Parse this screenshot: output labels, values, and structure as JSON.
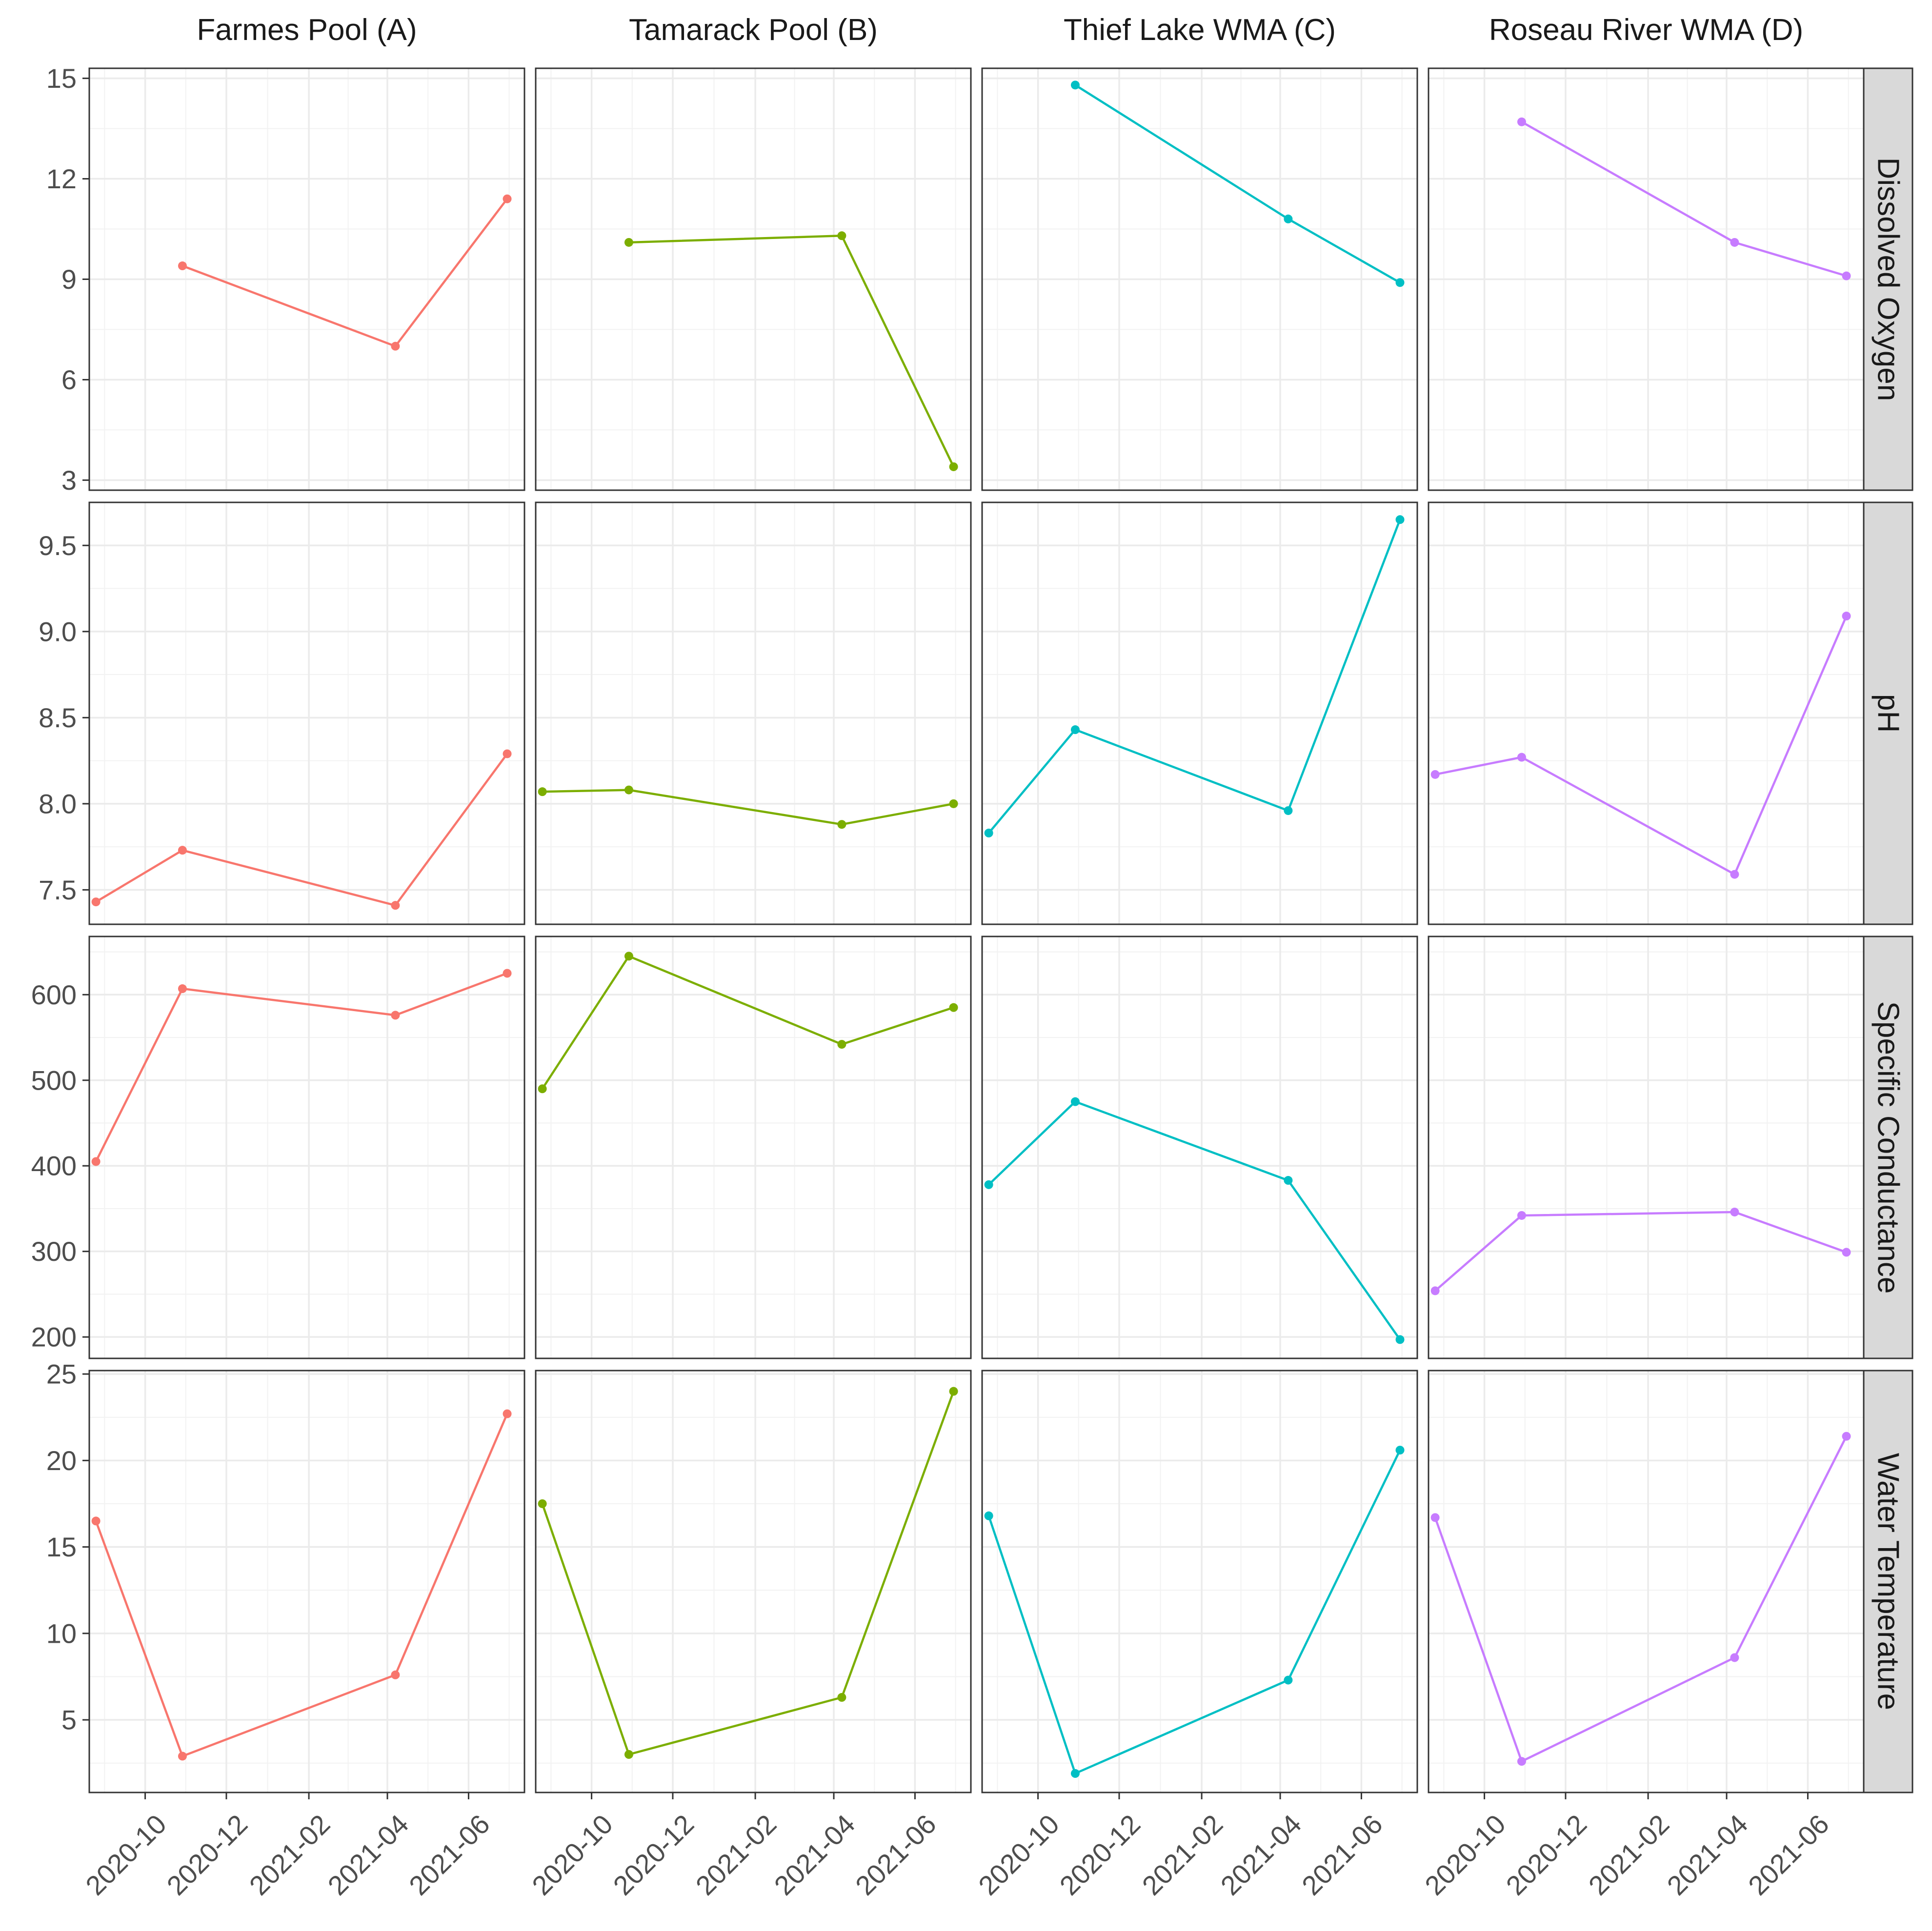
{
  "chart_data": {
    "type": "line",
    "facet_columns": [
      "Farmes Pool (A)",
      "Tamarack Pool (B)",
      "Thief Lake WMA (C)",
      "Roseau River WMA (D)"
    ],
    "facet_rows": [
      "Dissolved Oxygen",
      "pH",
      "Specific Conductance",
      "Water Temperature"
    ],
    "x_dates": [
      "2020-08-25",
      "2020-10-29",
      "2021-04-07",
      "2021-06-30"
    ],
    "x_ticks": [
      "2020-10",
      "2020-12",
      "2021-02",
      "2021-04",
      "2021-06"
    ],
    "xlim": [
      "2020-08-20",
      "2021-07-13"
    ],
    "colors": [
      "#F8766D",
      "#7CAE00",
      "#00BFC4",
      "#C77CFF"
    ],
    "grid": true,
    "legend": "none",
    "rows": [
      {
        "name": "Dissolved Oxygen",
        "ylim": [
          2.7,
          15.3
        ],
        "y_ticks": [
          3,
          6,
          9,
          12,
          15
        ],
        "y_tick_labels": [
          "3",
          "6",
          "9",
          "12",
          "15"
        ],
        "series": [
          {
            "site": "Farmes Pool (A)",
            "values": [
              null,
              9.4,
              7.0,
              11.4
            ]
          },
          {
            "site": "Tamarack Pool (B)",
            "values": [
              null,
              10.1,
              10.3,
              3.4
            ]
          },
          {
            "site": "Thief Lake WMA (C)",
            "values": [
              null,
              14.8,
              10.8,
              8.9
            ]
          },
          {
            "site": "Roseau River WMA (D)",
            "values": [
              null,
              13.7,
              10.1,
              9.1
            ]
          }
        ]
      },
      {
        "name": "pH",
        "ylim": [
          7.3,
          9.75
        ],
        "y_ticks": [
          7.5,
          8.0,
          8.5,
          9.0,
          9.5
        ],
        "y_tick_labels": [
          "7.5",
          "8.0",
          "8.5",
          "9.0",
          "9.5"
        ],
        "series": [
          {
            "site": "Farmes Pool (A)",
            "values": [
              7.43,
              7.73,
              7.41,
              8.29
            ]
          },
          {
            "site": "Tamarack Pool (B)",
            "values": [
              8.07,
              8.08,
              7.88,
              8.0
            ]
          },
          {
            "site": "Thief Lake WMA (C)",
            "values": [
              7.83,
              8.43,
              7.96,
              9.65
            ]
          },
          {
            "site": "Roseau River WMA (D)",
            "values": [
              8.17,
              8.27,
              7.59,
              9.09
            ]
          }
        ]
      },
      {
        "name": "Specific Conductance",
        "ylim": [
          175,
          668
        ],
        "y_ticks": [
          200,
          300,
          400,
          500,
          600
        ],
        "y_tick_labels": [
          "200",
          "300",
          "400",
          "500",
          "600"
        ],
        "series": [
          {
            "site": "Farmes Pool (A)",
            "values": [
              405,
              607,
              576,
              625
            ]
          },
          {
            "site": "Tamarack Pool (B)",
            "values": [
              490,
              645,
              542,
              585
            ]
          },
          {
            "site": "Thief Lake WMA (C)",
            "values": [
              378,
              475,
              383,
              197
            ]
          },
          {
            "site": "Roseau River WMA (D)",
            "values": [
              254,
              342,
              346,
              299
            ]
          }
        ]
      },
      {
        "name": "Water Temperature",
        "ylim": [
          0.8,
          25.2
        ],
        "y_ticks": [
          5,
          10,
          15,
          20,
          25
        ],
        "y_tick_labels": [
          "5",
          "10",
          "15",
          "20",
          "25"
        ],
        "series": [
          {
            "site": "Farmes Pool (A)",
            "values": [
              16.5,
              2.9,
              7.6,
              22.7
            ]
          },
          {
            "site": "Tamarack Pool (B)",
            "values": [
              17.5,
              3.0,
              6.3,
              24.0
            ]
          },
          {
            "site": "Thief Lake WMA (C)",
            "values": [
              16.8,
              1.9,
              7.3,
              20.6
            ]
          },
          {
            "site": "Roseau River WMA (D)",
            "values": [
              16.7,
              2.6,
              8.6,
              21.4
            ]
          }
        ]
      }
    ]
  }
}
